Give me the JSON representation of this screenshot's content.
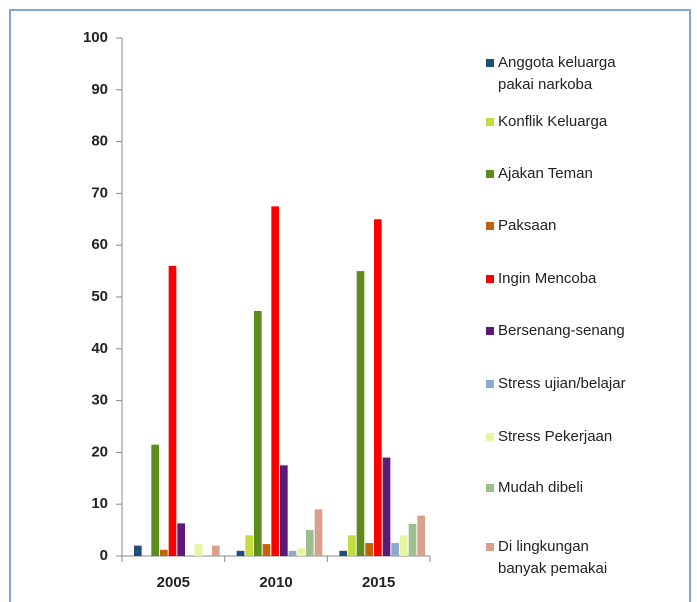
{
  "chart_data": {
    "type": "bar",
    "categories": [
      "2005",
      "2010",
      "2015"
    ],
    "series": [
      {
        "name": "Anggota keluarga\npakai narkoba",
        "color": "#1f4e79",
        "values": [
          2,
          1,
          1
        ]
      },
      {
        "name": "Konflik Keluarga",
        "color": "#c5dc3f",
        "values": [
          0,
          4,
          4
        ]
      },
      {
        "name": "Ajakan Teman",
        "color": "#5b8c1c",
        "values": [
          21.5,
          47.3,
          55
        ]
      },
      {
        "name": "Paksaan",
        "color": "#c4620c",
        "values": [
          1.2,
          2.3,
          2.5
        ]
      },
      {
        "name": "Ingin Mencoba",
        "color": "#ff0000",
        "values": [
          56,
          67.5,
          65
        ]
      },
      {
        "name": "Bersenang-senang",
        "color": "#5b1a78",
        "values": [
          6.3,
          17.5,
          19
        ]
      },
      {
        "name": "Stress ujian/belajar",
        "color": "#8eaacb",
        "values": [
          0,
          1,
          2.5
        ]
      },
      {
        "name": "Stress Pekerjaan",
        "color": "#eaf5a2",
        "values": [
          2.3,
          1.5,
          4
        ]
      },
      {
        "name": "Mudah dibeli",
        "color": "#9dbf8e",
        "values": [
          0,
          5,
          6.2
        ]
      },
      {
        "name": "Di lingkungan\nbanyak pemakai",
        "color": "#d9a08e",
        "values": [
          2,
          9,
          7.8
        ]
      }
    ],
    "ylim": [
      0,
      100
    ],
    "yticks": [
      0,
      10,
      20,
      30,
      40,
      50,
      60,
      70,
      80,
      90,
      100
    ],
    "grid": false
  }
}
